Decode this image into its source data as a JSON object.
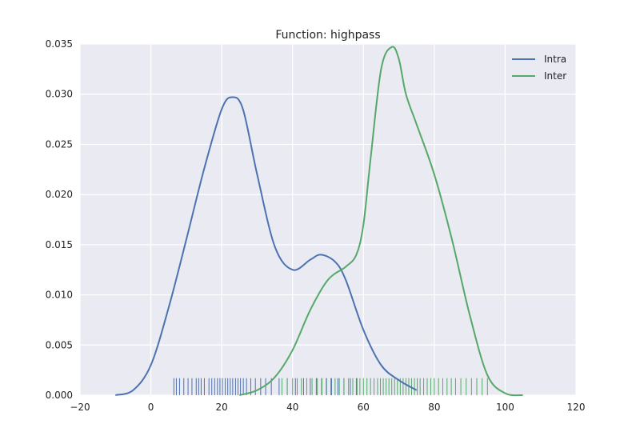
{
  "chart_data": {
    "type": "line",
    "title": "Function: highpass",
    "xlabel": "",
    "ylabel": "",
    "xlim": [
      -20,
      120
    ],
    "ylim": [
      0,
      0.035
    ],
    "x_ticks": [
      "−20",
      "0",
      "20",
      "40",
      "60",
      "80",
      "100",
      "120"
    ],
    "y_ticks": [
      "0.000",
      "0.005",
      "0.010",
      "0.015",
      "0.020",
      "0.025",
      "0.030",
      "0.035"
    ],
    "grid": true,
    "legend_position": "top-right",
    "colors": {
      "background": "#eaeaf2",
      "grid": "#ffffff",
      "Intra": "#4c72b0",
      "Inter": "#55a868"
    },
    "series": [
      {
        "name": "Intra",
        "x": [
          -10,
          -5,
          0,
          5,
          10,
          15,
          20,
          23,
          26,
          30,
          35,
          40,
          45,
          48,
          52,
          55,
          60,
          65,
          70,
          75
        ],
        "y": [
          0.0,
          0.0005,
          0.003,
          0.0087,
          0.0155,
          0.0225,
          0.0285,
          0.0297,
          0.0285,
          0.022,
          0.0148,
          0.0125,
          0.0135,
          0.014,
          0.0133,
          0.0115,
          0.0065,
          0.003,
          0.0015,
          0.0005
        ]
      },
      {
        "name": "Inter",
        "x": [
          25,
          30,
          35,
          40,
          45,
          50,
          55,
          58,
          60,
          62,
          65,
          68,
          70,
          72,
          75,
          80,
          85,
          90,
          95,
          100,
          105
        ],
        "y": [
          0.0,
          0.0005,
          0.0018,
          0.0045,
          0.0085,
          0.0115,
          0.0128,
          0.014,
          0.017,
          0.0235,
          0.0325,
          0.0347,
          0.0335,
          0.03,
          0.027,
          0.022,
          0.0155,
          0.008,
          0.002,
          0.0002,
          0.0
        ]
      }
    ],
    "rugs": [
      {
        "name": "Intra",
        "values": [
          6.5,
          7.2,
          8.1,
          9.3,
          10.5,
          11.6,
          12.8,
          13.5,
          14.2,
          15.1,
          16.4,
          17.2,
          18.0,
          18.8,
          19.5,
          20.2,
          21.0,
          21.7,
          22.4,
          23.1,
          23.9,
          24.6,
          25.3,
          26.1,
          27.0,
          28.2,
          29.5,
          31.0,
          32.4,
          34.0,
          36.2,
          38.5,
          40.8,
          43.1,
          45.0,
          46.7,
          48.2,
          49.6,
          51.0,
          52.8,
          54.5,
          56.3,
          58.0
        ]
      },
      {
        "name": "Inter",
        "values": [
          37.0,
          38.5,
          40.0,
          41.3,
          42.5,
          44.0,
          45.5,
          47.0,
          48.3,
          49.5,
          50.8,
          52.0,
          53.2,
          54.5,
          55.8,
          57.0,
          58.2,
          59.0,
          60.0,
          61.0,
          62.0,
          63.0,
          64.0,
          64.8,
          65.6,
          66.4,
          67.2,
          68.0,
          68.8,
          69.6,
          70.4,
          71.2,
          72.0,
          72.8,
          73.6,
          74.4,
          75.2,
          76.0,
          77.0,
          78.0,
          79.0,
          80.0,
          81.2,
          82.4,
          83.6,
          84.8,
          86.0,
          87.5,
          89.0,
          90.5,
          92.0,
          93.5,
          95.0
        ]
      }
    ],
    "rug_height": 0.0017
  }
}
